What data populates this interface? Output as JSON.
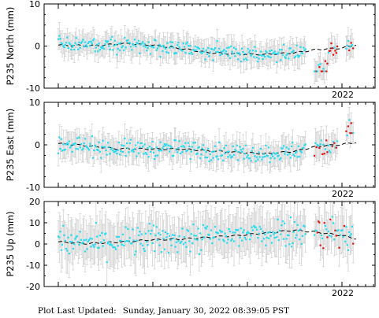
{
  "chart_data": [
    {
      "type": "scatter",
      "ylabel": "P235 North (mm)",
      "ylim": [
        -10,
        10
      ],
      "yticks": [
        "10",
        "0",
        "-10"
      ],
      "xtick_label": "2022",
      "trend": [
        [
          2019.0,
          0.2
        ],
        [
          2019.4,
          0.1
        ],
        [
          2019.7,
          0.6
        ],
        [
          2020.0,
          0.2
        ],
        [
          2020.3,
          -0.6
        ],
        [
          2020.6,
          -1.6
        ],
        [
          2020.9,
          -1.9
        ],
        [
          2021.2,
          -2.0
        ],
        [
          2021.5,
          -1.6
        ],
        [
          2021.75,
          -0.8
        ],
        [
          2022.0,
          -0.5
        ],
        [
          2022.15,
          0.3
        ]
      ],
      "summary": {
        "cyan_range": [
          -6,
          4
        ],
        "red_range": [
          -6.5,
          2
        ],
        "error_bar_half_width_mm": 2.5
      }
    },
    {
      "type": "scatter",
      "ylabel": "P235 East (mm)",
      "ylim": [
        -10,
        10
      ],
      "yticks": [
        "10",
        "0",
        "-10"
      ],
      "xtick_label": "2022",
      "trend": [
        [
          2019.0,
          0.3
        ],
        [
          2019.3,
          -0.2
        ],
        [
          2019.6,
          -0.9
        ],
        [
          2020.0,
          -1.0
        ],
        [
          2020.3,
          -1.0
        ],
        [
          2020.6,
          -1.4
        ],
        [
          2020.9,
          -1.8
        ],
        [
          2021.2,
          -2.1
        ],
        [
          2021.5,
          -1.5
        ],
        [
          2021.75,
          -0.3
        ],
        [
          2022.0,
          0.1
        ],
        [
          2022.15,
          0.6
        ]
      ],
      "summary": {
        "cyan_range": [
          -6,
          4
        ],
        "red_range": [
          -2,
          5.5
        ],
        "error_bar_half_width_mm": 2.7
      }
    },
    {
      "type": "scatter",
      "ylabel": "P235 Up (mm)",
      "ylim": [
        -20,
        20
      ],
      "yticks": [
        "20",
        "10",
        "0",
        "-10",
        "-20"
      ],
      "xtick_label": "2022",
      "trend": [
        [
          2019.0,
          1.0
        ],
        [
          2019.3,
          0.2
        ],
        [
          2019.6,
          0.8
        ],
        [
          2020.0,
          2.0
        ],
        [
          2020.3,
          2.3
        ],
        [
          2020.6,
          3.2
        ],
        [
          2020.9,
          4.0
        ],
        [
          2021.2,
          5.2
        ],
        [
          2021.5,
          6.5
        ],
        [
          2021.75,
          5.5
        ],
        [
          2022.0,
          4.0
        ],
        [
          2022.15,
          2.5
        ]
      ],
      "summary": {
        "cyan_range": [
          -13,
          14
        ],
        "red_range": [
          -5,
          12
        ],
        "error_bar_half_width_mm": 9
      }
    }
  ],
  "colors": {
    "cyan": "#22ddf2",
    "red": "#e81010",
    "error_bar": "#cccccc",
    "trend": "#000000"
  },
  "footer": {
    "label": "Plot Last Updated:",
    "value": "Sunday, January 30, 2022 08:39:05 PST"
  }
}
